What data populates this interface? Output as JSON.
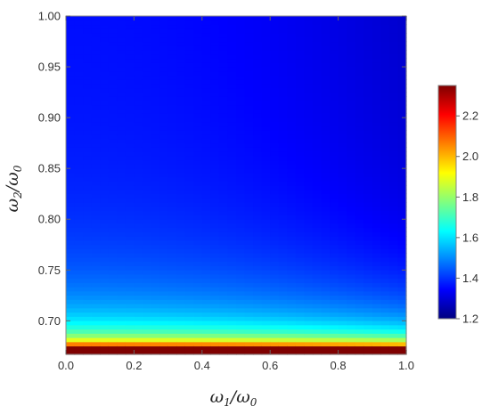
{
  "chart_data": {
    "type": "heatmap",
    "title": "",
    "x": {
      "label_main": "ω",
      "label_sub1": "1",
      "label_slash": "/",
      "label_main2": "ω",
      "label_sub2": "0",
      "range": [
        0.0,
        1.0
      ],
      "ticks": [
        0.0,
        0.2,
        0.4,
        0.6,
        0.8,
        1.0
      ],
      "tick_labels": [
        "0.0",
        "0.2",
        "0.4",
        "0.6",
        "0.8",
        "1.0"
      ]
    },
    "y": {
      "label_main": "ω",
      "label_sub1": "2",
      "label_slash": "/",
      "label_main2": "ω",
      "label_sub2": "0",
      "range": [
        0.667,
        1.0
      ],
      "ticks": [
        0.7,
        0.75,
        0.8,
        0.85,
        0.9,
        0.95,
        1.0
      ],
      "tick_labels": [
        "0.70",
        "0.75",
        "0.80",
        "0.85",
        "0.90",
        "0.95",
        "1.00"
      ]
    },
    "colorbar": {
      "range": [
        1.2,
        2.35
      ],
      "ticks": [
        1.2,
        1.4,
        1.6,
        1.8,
        2.0,
        2.2
      ],
      "tick_labels": [
        "1.2",
        "1.4",
        "1.6",
        "1.8",
        "2.0",
        "2.2"
      ],
      "colormap": [
        "#00007f",
        "#0000ff",
        "#0080ff",
        "#00ffff",
        "#80ff80",
        "#ffff00",
        "#ff8000",
        "#ff0000",
        "#7f0000"
      ]
    },
    "grid": false
  }
}
